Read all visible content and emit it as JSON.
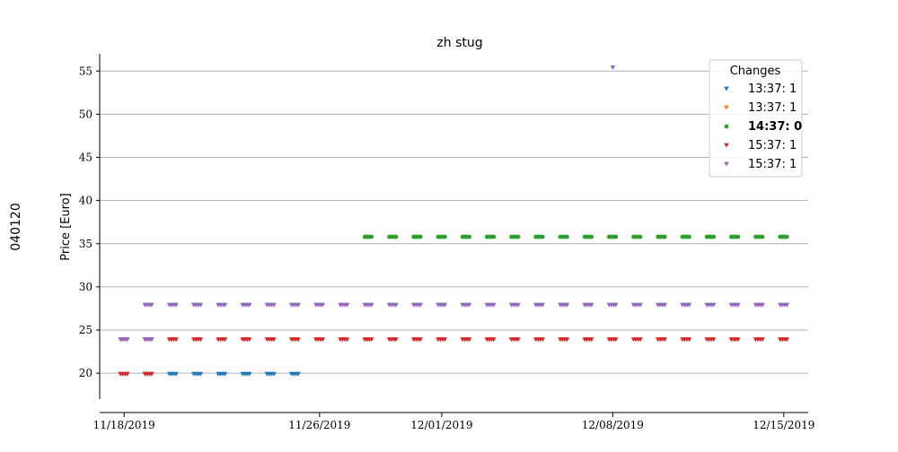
{
  "chart_data": {
    "type": "scatter",
    "title": "zh stug",
    "side_label": "040120",
    "ylabel": "Price [Euro]",
    "xlabel": "",
    "xlim": [
      "2019-11-17",
      "2019-12-16"
    ],
    "ylim": [
      17,
      57
    ],
    "yticks": [
      20,
      25,
      30,
      35,
      40,
      45,
      50,
      55
    ],
    "xtick_labels": [
      "11/18/2019",
      "11/26/2019",
      "12/01/2019",
      "12/08/2019",
      "12/15/2019"
    ],
    "xticks": [
      "2019-11-18",
      "2019-11-26",
      "2019-12-01",
      "2019-12-08",
      "2019-12-15"
    ],
    "grid": "horizontal",
    "legend": {
      "title": "Changes",
      "placement": "top-right",
      "entries": [
        {
          "label": "13:37: 1",
          "color": "#1f77b4",
          "marker": "triangle-down",
          "bold": false
        },
        {
          "label": "13:37: 1",
          "color": "#ff7f0e",
          "marker": "triangle-down",
          "bold": false
        },
        {
          "label": "14:37: 0",
          "color": "#2ca02c",
          "marker": "circle",
          "bold": true
        },
        {
          "label": "15:37: 1",
          "color": "#d62728",
          "marker": "triangle-down",
          "bold": false
        },
        {
          "label": "15:37: 1",
          "color": "#9467bd",
          "marker": "triangle-down",
          "bold": false
        }
      ]
    },
    "series": [
      {
        "color": "#1f77b4",
        "marker": "triangle-down",
        "y": 19.9,
        "x": [
          "2019-11-18",
          "2019-11-19",
          "2019-11-20",
          "2019-11-21",
          "2019-11-22",
          "2019-11-23",
          "2019-11-24",
          "2019-11-25"
        ]
      },
      {
        "color": "#2ca02c",
        "marker": "circle",
        "y": 35.8,
        "x": [
          "2019-11-28",
          "2019-11-29",
          "2019-11-30",
          "2019-12-01",
          "2019-12-02",
          "2019-12-03",
          "2019-12-04",
          "2019-12-05",
          "2019-12-06",
          "2019-12-07",
          "2019-12-08",
          "2019-12-09",
          "2019-12-10",
          "2019-12-11",
          "2019-12-12",
          "2019-12-13",
          "2019-12-14",
          "2019-12-15"
        ]
      },
      {
        "color": "#d62728",
        "marker": "triangle-down",
        "y": 23.9,
        "x": [
          "2019-11-18",
          "2019-11-19",
          "2019-11-20",
          "2019-11-21",
          "2019-11-22",
          "2019-11-23",
          "2019-11-24",
          "2019-11-25",
          "2019-11-26",
          "2019-11-27",
          "2019-11-28",
          "2019-11-29",
          "2019-11-30",
          "2019-12-01",
          "2019-12-02",
          "2019-12-03",
          "2019-12-04",
          "2019-12-05",
          "2019-12-06",
          "2019-12-07",
          "2019-12-08",
          "2019-12-09",
          "2019-12-10",
          "2019-12-11",
          "2019-12-12",
          "2019-12-13",
          "2019-12-14",
          "2019-12-15"
        ]
      },
      {
        "color": "#d62728",
        "marker": "triangle-down",
        "y": 19.9,
        "x": [
          "2019-11-18",
          "2019-11-19"
        ]
      },
      {
        "color": "#9467bd",
        "marker": "triangle-down",
        "y": 27.9,
        "x": [
          "2019-11-19",
          "2019-11-20",
          "2019-11-21",
          "2019-11-22",
          "2019-11-23",
          "2019-11-24",
          "2019-11-25",
          "2019-11-26",
          "2019-11-27",
          "2019-11-28",
          "2019-11-29",
          "2019-11-30",
          "2019-12-01",
          "2019-12-02",
          "2019-12-03",
          "2019-12-04",
          "2019-12-05",
          "2019-12-06",
          "2019-12-07",
          "2019-12-08",
          "2019-12-09",
          "2019-12-10",
          "2019-12-11",
          "2019-12-12",
          "2019-12-13",
          "2019-12-14",
          "2019-12-15"
        ]
      },
      {
        "color": "#9467bd",
        "marker": "triangle-down",
        "y": 23.9,
        "x": [
          "2019-11-18",
          "2019-11-19"
        ]
      },
      {
        "color": "#9467bd",
        "marker": "triangle-down",
        "y": 55.4,
        "x": [
          "2019-12-08"
        ]
      }
    ]
  }
}
